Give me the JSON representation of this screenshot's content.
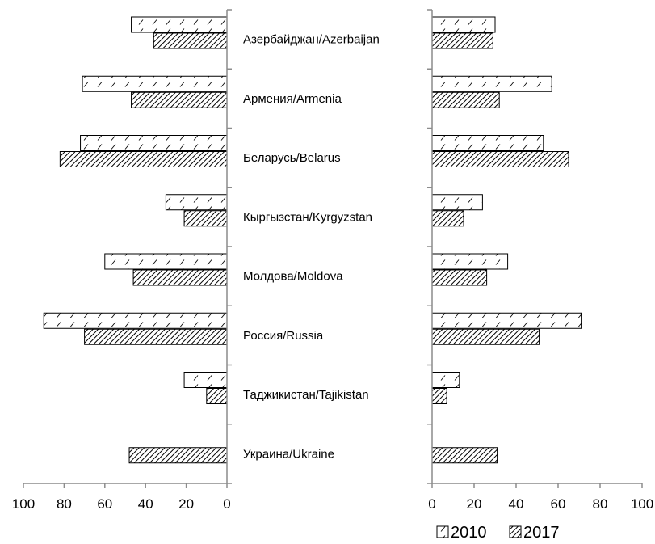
{
  "chart_data": {
    "type": "bar",
    "orientation": "horizontal",
    "layout": "two back-to-back panels sharing the category labels",
    "categories": [
      "Азербайджан/Azerbaijan",
      "Армения/Armenia",
      "Беларусь/Belarus",
      "Кыргызстан/Kyrgyzstan",
      "Молдова/Moldova",
      "Россия/Russia",
      "Таджикистан/Tajikistan",
      "Украина/Ukraine"
    ],
    "panels": [
      {
        "side": "left",
        "direction": "reversed",
        "xlim": [
          0,
          100
        ],
        "ticks": [
          "100",
          "80",
          "60",
          "40",
          "20",
          "0"
        ],
        "tick_values": [
          100,
          80,
          60,
          40,
          20,
          0
        ],
        "series": [
          {
            "name": "2010",
            "pattern": "light-diagonal",
            "values": [
              47,
              71,
              72,
              30,
              60,
              90,
              21,
              null
            ]
          },
          {
            "name": "2017",
            "pattern": "dense-diagonal",
            "values": [
              36,
              47,
              82,
              21,
              46,
              70,
              10,
              48
            ]
          }
        ]
      },
      {
        "side": "right",
        "direction": "normal",
        "xlim": [
          0,
          100
        ],
        "ticks": [
          "0",
          "20",
          "40",
          "60",
          "80",
          "100"
        ],
        "tick_values": [
          0,
          20,
          40,
          60,
          80,
          100
        ],
        "series": [
          {
            "name": "2010",
            "pattern": "light-diagonal",
            "values": [
              30,
              57,
              53,
              24,
              36,
              71,
              13,
              null
            ]
          },
          {
            "name": "2017",
            "pattern": "dense-diagonal",
            "values": [
              29,
              32,
              65,
              15,
              26,
              51,
              7,
              31
            ]
          }
        ]
      }
    ],
    "legend": {
      "placement": "bottom-right",
      "items": [
        {
          "label": "2010",
          "pattern": "light-diagonal"
        },
        {
          "label": "2017",
          "pattern": "dense-diagonal"
        }
      ]
    },
    "grid": false,
    "title": "",
    "xlabel": "",
    "ylabel": ""
  },
  "colors": {
    "bar_outline": "#000000",
    "axis": "#8c8c8c",
    "background": "#ffffff"
  }
}
